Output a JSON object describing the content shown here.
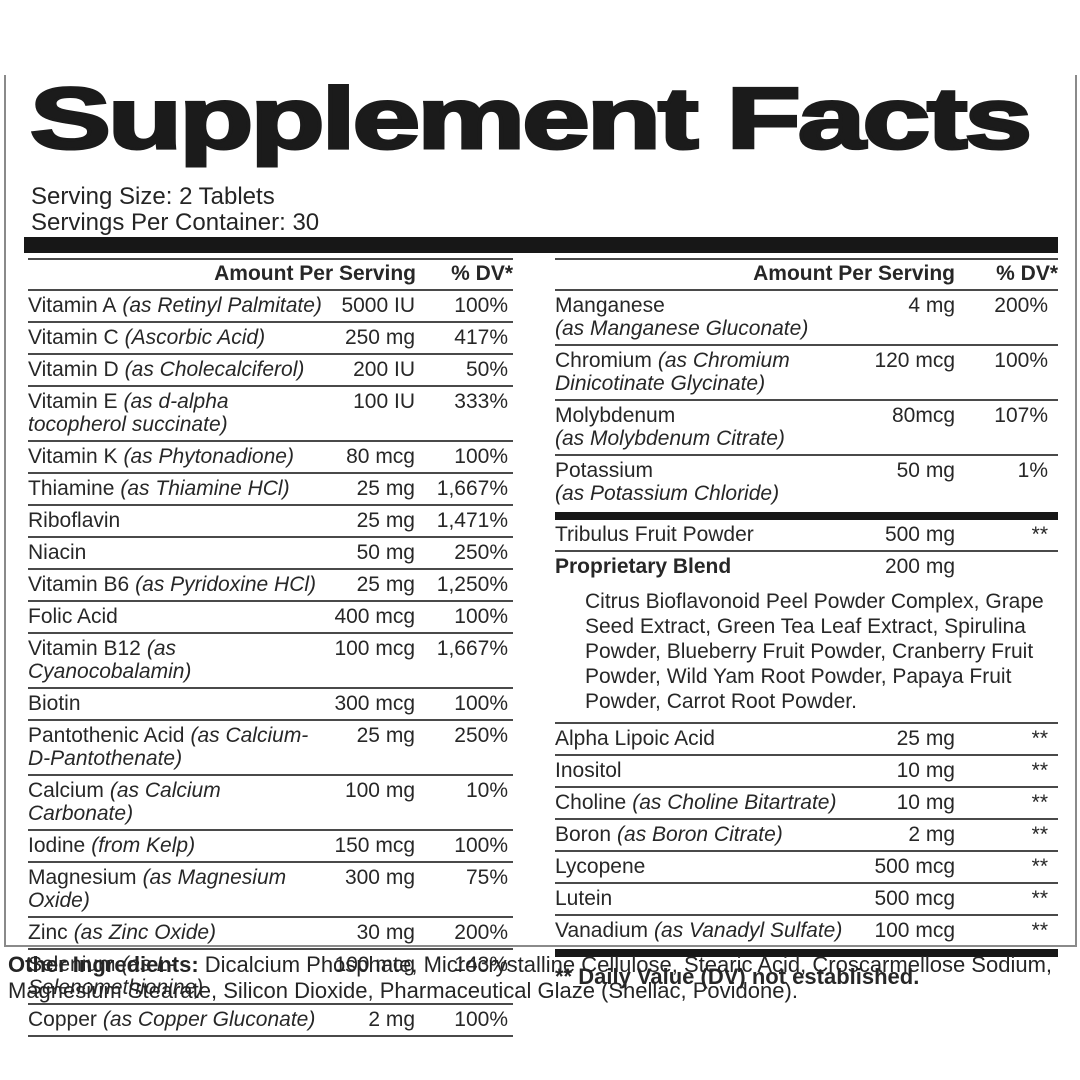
{
  "title": "Supplement Facts",
  "serving": {
    "size": "Serving Size: 2 Tablets",
    "per_container": "Servings Per Container: 30"
  },
  "header": {
    "amount": "Amount Per Serving",
    "dv": "% DV*"
  },
  "left_rows": [
    {
      "type": "row",
      "name": "Vitamin A",
      "form": "(as Retinyl Palmitate)",
      "amount": "5000 IU",
      "dv": "100%"
    },
    {
      "type": "row",
      "name": "Vitamin C",
      "form": "(Ascorbic Acid)",
      "amount": "250 mg",
      "dv": "417%"
    },
    {
      "type": "row",
      "name": "Vitamin D",
      "form": "(as Cholecalciferol)",
      "amount": "200 IU",
      "dv": "50%"
    },
    {
      "type": "row",
      "name": "Vitamin E",
      "form": "(as d-alpha tocopherol succinate)",
      "amount": "100 IU",
      "dv": "333%"
    },
    {
      "type": "row",
      "name": "Vitamin K",
      "form": "(as Phytonadione)",
      "amount": "80 mcg",
      "dv": "100%"
    },
    {
      "type": "row",
      "name": "Thiamine",
      "form": "(as Thiamine HCl)",
      "amount": "25 mg",
      "dv": "1,667%"
    },
    {
      "type": "row",
      "name": "Riboflavin",
      "form": "",
      "amount": "25 mg",
      "dv": "1,471%"
    },
    {
      "type": "row",
      "name": "Niacin",
      "form": "",
      "amount": "50 mg",
      "dv": "250%"
    },
    {
      "type": "row",
      "name": "Vitamin B6",
      "form": "(as Pyridoxine HCl)",
      "amount": "25 mg",
      "dv": "1,250%"
    },
    {
      "type": "row",
      "name": "Folic Acid",
      "form": "",
      "amount": "400 mcg",
      "dv": "100%"
    },
    {
      "type": "row",
      "name": "Vitamin B12",
      "form": "(as Cyanocobalamin)",
      "amount": "100 mcg",
      "dv": "1,667%"
    },
    {
      "type": "row",
      "name": "Biotin",
      "form": "",
      "amount": "300 mcg",
      "dv": "100%"
    },
    {
      "type": "row",
      "name": "Pantothenic Acid",
      "form": "(as Calcium-D-Pantothenate)",
      "amount": "25 mg",
      "dv": "250%"
    },
    {
      "type": "row",
      "name": "Calcium",
      "form": "(as Calcium Carbonate)",
      "amount": "100 mg",
      "dv": "10%"
    },
    {
      "type": "row",
      "name": "Iodine",
      "form": "(from Kelp)",
      "amount": "150 mcg",
      "dv": "100%"
    },
    {
      "type": "row",
      "name": "Magnesium",
      "form": "(as Magnesium Oxide)",
      "amount": "300 mg",
      "dv": "75%"
    },
    {
      "type": "row",
      "name": "Zinc",
      "form": "(as Zinc Oxide)",
      "amount": "30 mg",
      "dv": "200%"
    },
    {
      "type": "row",
      "name": "Selenium",
      "form": "(as L-Selenomethionine)",
      "amount": "100 mcg",
      "dv": "143%"
    },
    {
      "type": "row",
      "name": "Copper",
      "form": "(as Copper Gluconate)",
      "amount": "2 mg",
      "dv": "100%"
    }
  ],
  "right_rows": [
    {
      "type": "row",
      "name": "Manganese",
      "form": "(as Manganese Gluconate)",
      "amount": "4 mg",
      "dv": "200%",
      "block_form": true
    },
    {
      "type": "row",
      "name": "Chromium",
      "form": "(as Chromium Dinicotinate Glycinate)",
      "amount": "120 mcg",
      "dv": "100%"
    },
    {
      "type": "row",
      "name": "Molybdenum",
      "form": "(as Molybdenum Citrate)",
      "amount": "80mcg",
      "dv": "107%",
      "block_form": true
    },
    {
      "type": "row",
      "name": "Potassium",
      "form": "(as Potassium Chloride)",
      "amount": "50 mg",
      "dv": "1%",
      "block_form": true,
      "no_border": true
    },
    {
      "type": "bar"
    },
    {
      "type": "row",
      "name": "Tribulus Fruit Powder",
      "form": "",
      "amount": "500 mg",
      "dv": "**"
    },
    {
      "type": "row",
      "name": "Proprietary Blend",
      "form": "",
      "amount": "200 mg",
      "dv": "",
      "bold": true,
      "no_border": true
    },
    {
      "type": "desc",
      "text": "Citrus Bioflavonoid Peel Powder Complex, Grape Seed Extract, Green Tea Leaf Extract, Spirulina Powder, Blueberry Fruit Powder, Cranberry Fruit Powder, Wild Yam Root Powder, Papaya Fruit Powder, Carrot Root Powder."
    },
    {
      "type": "row",
      "name": "Alpha Lipoic Acid",
      "form": "",
      "amount": "25 mg",
      "dv": "**"
    },
    {
      "type": "row",
      "name": "Inositol",
      "form": "",
      "amount": "10 mg",
      "dv": "**"
    },
    {
      "type": "row",
      "name": "Choline",
      "form": "(as Choline Bitartrate)",
      "amount": "10 mg",
      "dv": "**"
    },
    {
      "type": "row",
      "name": "Boron",
      "form": "(as Boron Citrate)",
      "amount": "2 mg",
      "dv": "**"
    },
    {
      "type": "row",
      "name": "Lycopene",
      "form": "",
      "amount": "500 mcg",
      "dv": "**"
    },
    {
      "type": "row",
      "name": "Lutein",
      "form": "",
      "amount": "500 mcg",
      "dv": "**"
    },
    {
      "type": "row",
      "name": "Vanadium",
      "form": "(as Vanadyl Sulfate)",
      "amount": "100 mcg",
      "dv": "**",
      "no_border": true
    },
    {
      "type": "bar"
    },
    {
      "type": "footnote",
      "text": "** Daily Value (DV) not established."
    }
  ],
  "other_ingredients": {
    "label": "Other Ingredients:",
    "text": "Dicalcium Phosphate, Microcrystalline Cellulose, Stearic Acid, Croscarmellose Sodium, Magnesium Stearate, Silicon Dioxide, Pharmaceutical Glaze (Shellac, Povidone)."
  },
  "colors": {
    "ink": "#1b1b1b",
    "rule": "#4a4a4a",
    "outer_border": "#8a8a8a",
    "background": "#ffffff"
  }
}
